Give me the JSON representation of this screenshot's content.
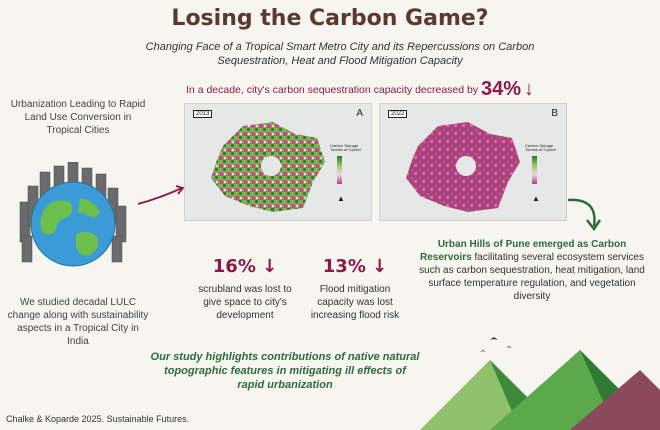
{
  "title": "Losing the Carbon Game?",
  "subtitle_line1": "Changing Face of a Tropical Smart Metro City and its Repercussions on Carbon",
  "subtitle_line2": "Sequestration, Heat and Flood Mitigation Capacity",
  "decade": {
    "text": "In a decade, city's carbon sequestration capacity decreased by",
    "value": "34%",
    "arrow": "↓"
  },
  "left_top_text": "Urbanization Leading to Rapid Land Use Conversion in Tropical Cities",
  "left_bottom_text": "We studied decadal LULC change along with sustainability aspects in a Tropical City in India",
  "maps": [
    {
      "year": "2013",
      "letter": "A",
      "legend_title": "Carbon Storage Tonnes of C/pixel"
    },
    {
      "year": "2022",
      "letter": "B",
      "legend_title": "Carbon Storage Tonnes of C/pixel"
    }
  ],
  "stats": [
    {
      "value": "16%",
      "arrow": "↓",
      "desc": "scrubland was lost to give space to city's development"
    },
    {
      "value": "13%",
      "arrow": "↓",
      "desc": "Flood mitigation capacity was lost increasing flood risk"
    }
  ],
  "right": {
    "highlight": "Urban Hills of Pune emerged as Carbon Reservoirs",
    "rest": " facilitating several ecosystem services such as carbon sequestration, heat mitigation, land surface temperature regulation, and vegetation diversity"
  },
  "highlight_text": "Our study highlights contributions of native natural topographic features in mitigating ill effects of rapid urbanization",
  "citation": "Chalke & Koparde 2025. Sustainable Futures.",
  "colors": {
    "title": "#5a3a2e",
    "accent": "#8b1a4a",
    "green": "#2f6b3c",
    "background": "#f6f5f0"
  }
}
